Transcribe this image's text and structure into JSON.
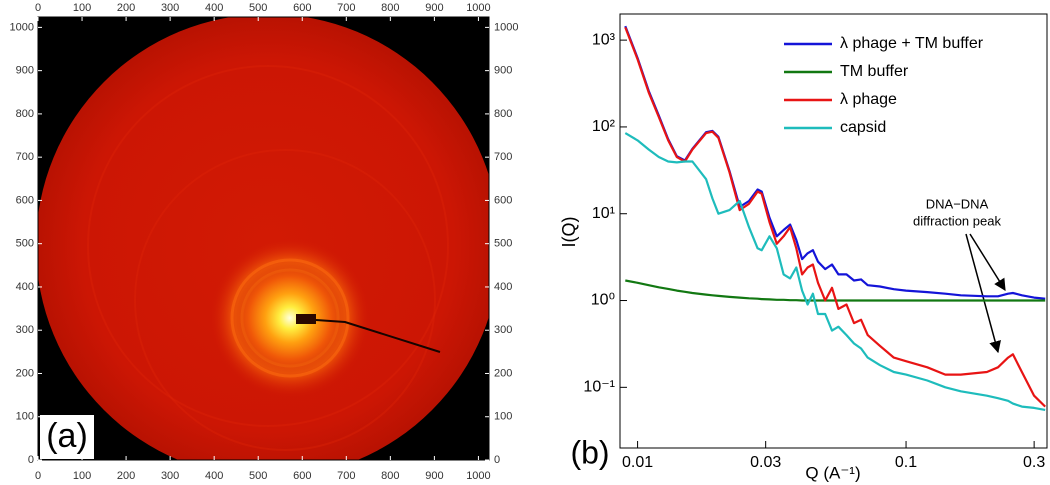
{
  "chart_data": [
    {
      "type": "image",
      "label": "(a)",
      "xlim": [
        0,
        1024
      ],
      "ylim": [
        0,
        1024
      ],
      "xticks": [
        0,
        100,
        200,
        300,
        400,
        500,
        600,
        700,
        800,
        900,
        1000
      ],
      "yticks": [
        0,
        100,
        200,
        300,
        400,
        500,
        600,
        700,
        800,
        900,
        1000
      ]
    },
    {
      "type": "line",
      "label": "(b)",
      "x_label": "Q (A⁻¹)",
      "y_label": "I(Q)",
      "log_x": true,
      "log_y": true,
      "legend": "upper right",
      "annotation": [
        "DNA−DNA",
        "diffraction peak"
      ],
      "xlim": [
        0.0086,
        0.335
      ],
      "ylim": [
        0.02,
        2000
      ],
      "xticks": [
        0.01,
        0.03,
        0.1,
        0.3
      ],
      "yticks": [
        {
          "value": 0.1,
          "label": "10⁻¹"
        },
        {
          "value": 1,
          "label": "10⁰"
        },
        {
          "value": 10,
          "label": "10¹"
        },
        {
          "value": 100,
          "label": "10²"
        },
        {
          "value": 1000,
          "label": "10³"
        }
      ],
      "x": [
        0.009,
        0.01,
        0.011,
        0.012,
        0.013,
        0.014,
        0.015,
        0.016,
        0.018,
        0.019,
        0.02,
        0.022,
        0.024,
        0.026,
        0.028,
        0.029,
        0.031,
        0.033,
        0.035,
        0.037,
        0.039,
        0.041,
        0.043,
        0.045,
        0.047,
        0.05,
        0.053,
        0.056,
        0.06,
        0.064,
        0.068,
        0.072,
        0.08,
        0.09,
        0.1,
        0.12,
        0.14,
        0.16,
        0.2,
        0.22,
        0.24,
        0.25,
        0.27,
        0.3,
        0.33
      ],
      "series": [
        {
          "name": "λ phage + TM buffer",
          "color": "#1414d8",
          "values": [
            1450,
            620,
            260,
            135,
            72,
            46,
            41,
            56,
            87,
            90,
            77,
            31,
            12,
            14,
            19,
            18,
            9,
            5.5,
            6.5,
            7.5,
            5,
            3,
            3.5,
            3.8,
            2.8,
            2.3,
            2.6,
            2,
            2,
            1.7,
            1.75,
            1.5,
            1.45,
            1.35,
            1.3,
            1.25,
            1.2,
            1.15,
            1.12,
            1.12,
            1.2,
            1.22,
            1.15,
            1.08,
            1.05
          ]
        },
        {
          "name": "TM buffer",
          "color": "#127812",
          "values": [
            1.7,
            1.6,
            1.5,
            1.42,
            1.36,
            1.3,
            1.26,
            1.22,
            1.17,
            1.15,
            1.13,
            1.1,
            1.08,
            1.06,
            1.05,
            1.04,
            1.03,
            1.02,
            1.02,
            1.01,
            1.01,
            1,
            1,
            1,
            1,
            1,
            1,
            1,
            1,
            1,
            1,
            1,
            1,
            1,
            1,
            1,
            1,
            1,
            1,
            1,
            1,
            1,
            1,
            1,
            1
          ]
        },
        {
          "name": "λ phage",
          "color": "#e81414",
          "values": [
            1400,
            600,
            250,
            130,
            70,
            45,
            40,
            55,
            85,
            88,
            75,
            30,
            11,
            13,
            18,
            17,
            8,
            4.5,
            5.5,
            7,
            4,
            2,
            2.4,
            2.6,
            1.6,
            1,
            1.4,
            0.8,
            0.9,
            0.55,
            0.6,
            0.4,
            0.3,
            0.22,
            0.2,
            0.17,
            0.14,
            0.14,
            0.15,
            0.17,
            0.22,
            0.24,
            0.15,
            0.08,
            0.06
          ]
        },
        {
          "name": "capsid",
          "color": "#1ebcbc",
          "values": [
            85,
            70,
            55,
            45,
            40,
            39,
            40,
            40,
            25,
            15,
            10,
            11,
            14,
            7,
            4,
            3.8,
            5.5,
            4,
            2,
            1.8,
            2.4,
            1.3,
            0.9,
            1.2,
            0.7,
            0.7,
            0.45,
            0.5,
            0.4,
            0.32,
            0.28,
            0.22,
            0.18,
            0.15,
            0.14,
            0.12,
            0.1,
            0.09,
            0.08,
            0.075,
            0.07,
            0.065,
            0.06,
            0.058,
            0.055
          ]
        }
      ]
    }
  ]
}
